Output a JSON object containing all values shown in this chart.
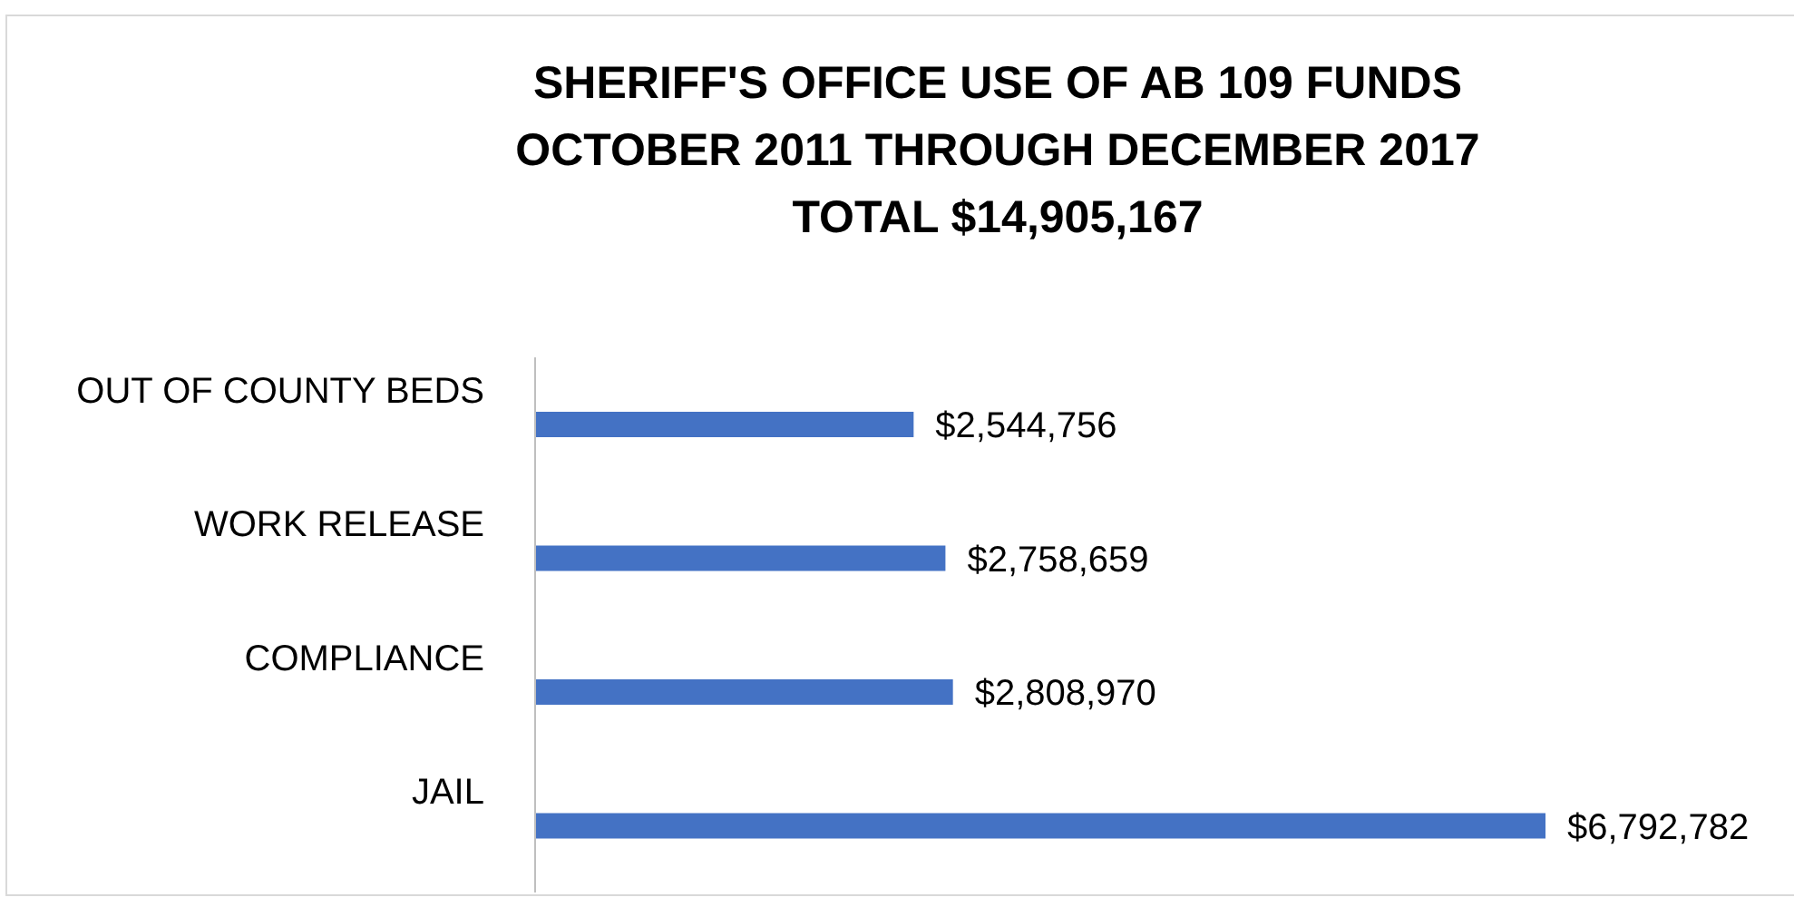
{
  "chart_data": {
    "type": "bar",
    "orientation": "horizontal",
    "title": "SHERIFF'S OFFICE USE OF AB 109 FUNDS\nOCTOBER 2011 THROUGH DECEMBER 2017\nTOTAL $14,905,167",
    "categories": [
      "OUT OF COUNTY BEDS",
      "WORK RELEASE",
      "COMPLIANCE",
      "JAIL"
    ],
    "values": [
      2544756,
      2758659,
      2808970,
      6792782
    ],
    "value_labels": [
      "$2,544,756",
      "$2,758,659",
      "$2,808,970",
      "$6,792,782"
    ],
    "color": "#4472c4"
  }
}
